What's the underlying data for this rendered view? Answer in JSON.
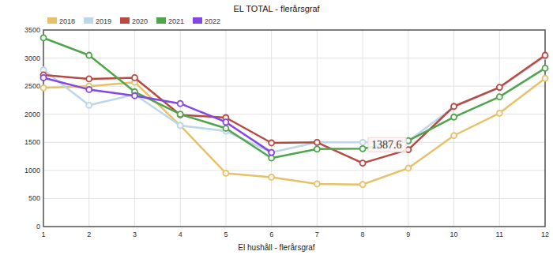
{
  "chart_data": {
    "type": "line",
    "title": "EL TOTAL - flerårsgraf",
    "x": [
      1,
      2,
      3,
      4,
      5,
      6,
      7,
      8,
      9,
      10,
      11,
      12
    ],
    "series": [
      {
        "name": "2018",
        "color": "#e5c26a",
        "marker": "circle",
        "values": [
          2470,
          2500,
          2570,
          1800,
          950,
          880,
          760,
          750,
          1040,
          1620,
          2020,
          2640
        ]
      },
      {
        "name": "2019",
        "color": "#bcd6ea",
        "marker": "circle",
        "values": [
          2790,
          2160,
          2350,
          1800,
          1700,
          1320,
          1500,
          1500,
          1520,
          2130,
          2470,
          3030
        ]
      },
      {
        "name": "2020",
        "color": "#b74a42",
        "marker": "circle",
        "values": [
          2700,
          2630,
          2650,
          1990,
          1940,
          1490,
          1500,
          1130,
          1370,
          2140,
          2480,
          3050
        ]
      },
      {
        "name": "2021",
        "color": "#4fa64a",
        "marker": "circle",
        "values": [
          3360,
          3050,
          2400,
          2000,
          1750,
          1220,
          1380,
          1387.6,
          1530,
          1950,
          2310,
          2820
        ]
      },
      {
        "name": "2022",
        "color": "#8546e6",
        "marker": "circle",
        "values": [
          2650,
          2440,
          2330,
          2190,
          1860,
          1320,
          null,
          null,
          null,
          null,
          null,
          null
        ]
      }
    ],
    "xlim": [
      1,
      12
    ],
    "xticks": [
      1,
      2,
      3,
      4,
      5,
      6,
      7,
      8,
      9,
      10,
      11,
      12
    ],
    "ylim": [
      0,
      3500
    ],
    "yticks": [
      0,
      500,
      1000,
      1500,
      2000,
      2500,
      3000,
      3500
    ],
    "grid": true,
    "legend": "top-left",
    "annotations": [
      {
        "text": "1387.6",
        "x": 8,
        "y": 1387.6
      }
    ]
  },
  "footer": {
    "text": "El hushåll - flerårsgraf"
  }
}
